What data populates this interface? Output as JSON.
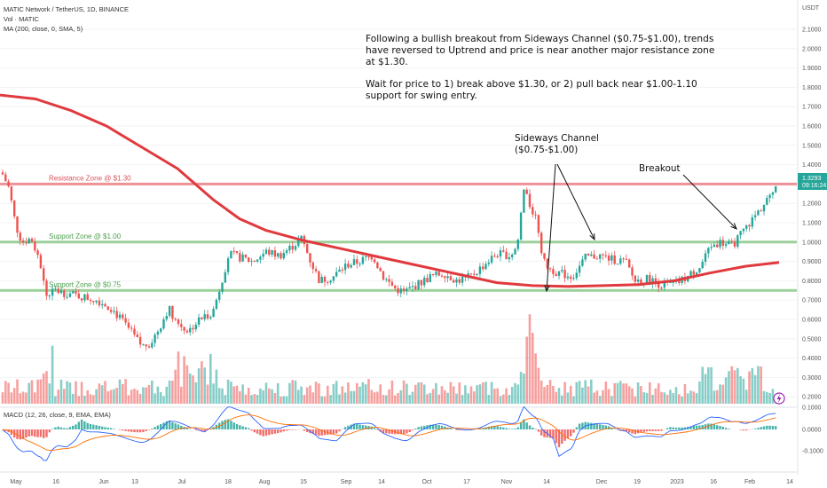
{
  "legend": {
    "main": "MATIC Network / TetherUS, 1D, BINANCE",
    "vol": "Vol · MATIC",
    "ma": "MA (200, close, 0, SMA, 5)",
    "macd": "MACD (12, 26, close, 9, EMA, EMA)"
  },
  "axis": {
    "currency": "USDT",
    "price_ticks": [
      "2.1000",
      "2.0000",
      "1.9000",
      "1.8000",
      "1.7000",
      "1.6000",
      "1.5000",
      "1.4000",
      "1.3000",
      "1.2000",
      "1.1000",
      "1.0000",
      "0.9000",
      "0.8000",
      "0.7000",
      "0.6000",
      "0.5000",
      "0.4000",
      "0.3000",
      "0.2000"
    ],
    "macd_ticks": [
      "0.1000",
      "0.0000",
      "-0.1000"
    ],
    "price_tag": "1.3293",
    "time_tag": "09:16:24",
    "time_labels": [
      "May",
      "16",
      "Jun",
      "13",
      "Jul",
      "18",
      "Aug",
      "15",
      "Sep",
      "14",
      "Oct",
      "17",
      "Nov",
      "14",
      "Dec",
      "19",
      "2023",
      "16",
      "Feb",
      "14"
    ]
  },
  "annotations": {
    "main_text_1": "Following a bullish breakout from Sideways Channel ($0.75-$1.00), trends have reversed to Uptrend and price is near another major resistance zone at $1.30.",
    "main_text_2": "Wait for price to 1) break above $1.30, or 2) pull back near $1.00-1.10 support for swing entry.",
    "sideways_line1": "Sideways Channel",
    "sideways_line2": "($0.75-$1.00)",
    "breakout": "Breakout"
  },
  "zones": {
    "resistance": "Resistance Zone @ $1.30",
    "support_1": "Support Zone @ $1.00",
    "support_075": "Support Zone @ $0.75"
  },
  "colors": {
    "up": "#26a69a",
    "down": "#ef5350",
    "ma": "#e03a3e",
    "resistance": "#ec7f86",
    "support": "#8bc98a",
    "macd_line": "#2962ff",
    "signal_line": "#ff6d00"
  },
  "chart_data": {
    "type": "candlestick",
    "ylim": [
      0.2,
      2.2
    ],
    "zones": [
      1.3,
      1.0,
      0.75
    ],
    "price_close": [
      {
        "x": "May",
        "y": 1.33
      },
      {
        "x": "May",
        "y": 0.95
      },
      {
        "x": "16",
        "y": 0.7
      },
      {
        "x": "Jun",
        "y": 0.64
      },
      {
        "x": "13",
        "y": 0.46
      },
      {
        "x": "Jul",
        "y": 0.54
      },
      {
        "x": "18",
        "y": 0.92
      },
      {
        "x": "Aug",
        "y": 0.93
      },
      {
        "x": "15",
        "y": 0.97
      },
      {
        "x": "Sep",
        "y": 0.8
      },
      {
        "x": "14",
        "y": 0.78
      },
      {
        "x": "Oct",
        "y": 0.73
      },
      {
        "x": "17",
        "y": 0.82
      },
      {
        "x": "Nov",
        "y": 0.98
      },
      {
        "x": "14",
        "y": 0.83
      },
      {
        "x": "Dec",
        "y": 0.91
      },
      {
        "x": "19",
        "y": 0.81
      },
      {
        "x": "2023",
        "y": 0.78
      },
      {
        "x": "16",
        "y": 0.93
      },
      {
        "x": "Feb",
        "y": 1.17
      },
      {
        "x": "14",
        "y": 1.33
      }
    ],
    "ma200": [
      {
        "x": "May",
        "y": 1.76
      },
      {
        "x": "Jun",
        "y": 1.63
      },
      {
        "x": "Jul",
        "y": 1.28
      },
      {
        "x": "Aug",
        "y": 1.01
      },
      {
        "x": "Sep",
        "y": 0.92
      },
      {
        "x": "Oct",
        "y": 0.86
      },
      {
        "x": "Nov",
        "y": 0.79
      },
      {
        "x": "Dec",
        "y": 0.77
      },
      {
        "x": "2023",
        "y": 0.8
      },
      {
        "x": "Feb",
        "y": 0.89
      }
    ]
  }
}
